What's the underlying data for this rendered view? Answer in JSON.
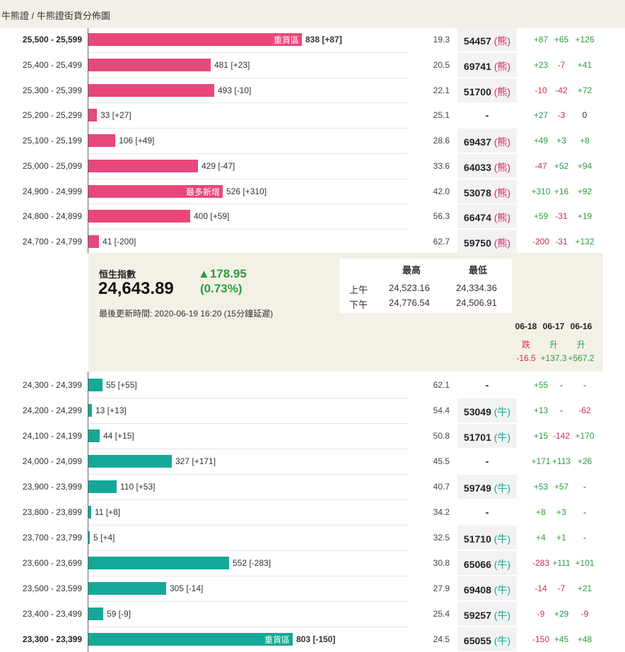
{
  "breadcrumb": "牛熊證 / 牛熊證街貨分佈圖",
  "bear_rows": [
    {
      "range": "25,500 - 25,599",
      "qty": "838",
      "change": "[+87]",
      "tag": "重貨區",
      "bold": true,
      "distance": "19.3",
      "code": "54457",
      "type": "(熊)",
      "d1": "+87",
      "d2": "+65",
      "d3": "+126"
    },
    {
      "range": "25,400 - 25,499",
      "qty": "481",
      "change": "[+23]",
      "tag": "",
      "bold": false,
      "distance": "20.5",
      "code": "69741",
      "type": "(熊)",
      "d1": "+23",
      "d2": "-7",
      "d3": "+41"
    },
    {
      "range": "25,300 - 25,399",
      "qty": "493",
      "change": "[-10]",
      "tag": "",
      "bold": false,
      "distance": "22.1",
      "code": "51700",
      "type": "(熊)",
      "d1": "-10",
      "d2": "-42",
      "d3": "+72"
    },
    {
      "range": "25,200 - 25,299",
      "qty": "33",
      "change": "[+27]",
      "tag": "",
      "bold": false,
      "distance": "25.1",
      "code": "-",
      "type": "",
      "d1": "+27",
      "d2": "-3",
      "d3": "0"
    },
    {
      "range": "25,100 - 25,199",
      "qty": "106",
      "change": "[+49]",
      "tag": "",
      "bold": false,
      "distance": "28.6",
      "code": "69437",
      "type": "(熊)",
      "d1": "+49",
      "d2": "+3",
      "d3": "+8"
    },
    {
      "range": "25,000 - 25,099",
      "qty": "429",
      "change": "[-47]",
      "tag": "",
      "bold": false,
      "distance": "33.6",
      "code": "64033",
      "type": "(熊)",
      "d1": "-47",
      "d2": "+52",
      "d3": "+94"
    },
    {
      "range": "24,900 - 24,999",
      "qty": "526",
      "change": "[+310]",
      "tag": "最多新增",
      "bold": false,
      "distance": "42.0",
      "code": "53078",
      "type": "(熊)",
      "d1": "+310",
      "d2": "+16",
      "d3": "+92"
    },
    {
      "range": "24,800 - 24,899",
      "qty": "400",
      "change": "[+59]",
      "tag": "",
      "bold": false,
      "distance": "56.3",
      "code": "66474",
      "type": "(熊)",
      "d1": "+59",
      "d2": "-31",
      "d3": "+19"
    },
    {
      "range": "24,700 - 24,799",
      "qty": "41",
      "change": "[-200]",
      "tag": "",
      "bold": false,
      "distance": "62.7",
      "code": "59750",
      "type": "(熊)",
      "d1": "-200",
      "d2": "-31",
      "d3": "+132"
    }
  ],
  "index": {
    "title": "恒生指數",
    "value": "24,643.89",
    "change": "▲178.95",
    "change_pct": "(0.73%)",
    "updated": "最後更新時間: 2020-06-19 16:20 (15分鐘延遲)",
    "high_header": "最高",
    "low_header": "最低",
    "am_label": "上午",
    "pm_label": "下午",
    "am_high": "24,523.16",
    "am_low": "24,334.36",
    "pm_high": "24,776.54",
    "pm_low": "24,506.91",
    "days": [
      {
        "date": "06-18",
        "dir": "跌",
        "pts": "-16.5",
        "color": "#d62a4a"
      },
      {
        "date": "06-17",
        "dir": "升",
        "pts": "+137.3",
        "color": "#2f9a43"
      },
      {
        "date": "06-16",
        "dir": "升",
        "pts": "+567.2",
        "color": "#2f9a43"
      }
    ]
  },
  "bull_rows": [
    {
      "range": "24,300 - 24,399",
      "qty": "55",
      "change": "[+55]",
      "tag": "",
      "bold": false,
      "distance": "62.1",
      "code": "-",
      "type": "",
      "d1": "+55",
      "d2": "-",
      "d3": "-"
    },
    {
      "range": "24,200 - 24,299",
      "qty": "13",
      "change": "[+13]",
      "tag": "",
      "bold": false,
      "distance": "54.4",
      "code": "53049",
      "type": "(牛)",
      "d1": "+13",
      "d2": "-",
      "d3": "-62"
    },
    {
      "range": "24,100 - 24,199",
      "qty": "44",
      "change": "[+15]",
      "tag": "",
      "bold": false,
      "distance": "50.8",
      "code": "51701",
      "type": "(牛)",
      "d1": "+15",
      "d2": "-142",
      "d3": "+170"
    },
    {
      "range": "24,000 - 24,099",
      "qty": "327",
      "change": "[+171]",
      "tag": "",
      "bold": false,
      "distance": "45.5",
      "code": "-",
      "type": "",
      "d1": "+171",
      "d2": "+113",
      "d3": "+26"
    },
    {
      "range": "23,900 - 23,999",
      "qty": "110",
      "change": "[+53]",
      "tag": "",
      "bold": false,
      "distance": "40.7",
      "code": "59749",
      "type": "(牛)",
      "d1": "+53",
      "d2": "+57",
      "d3": "-"
    },
    {
      "range": "23,800 - 23,899",
      "qty": "11",
      "change": "[+8]",
      "tag": "",
      "bold": false,
      "distance": "34.2",
      "code": "-",
      "type": "",
      "d1": "+8",
      "d2": "+3",
      "d3": "-"
    },
    {
      "range": "23,700 - 23,799",
      "qty": "5",
      "change": "[+4]",
      "tag": "",
      "bold": false,
      "distance": "32.5",
      "code": "51710",
      "type": "(牛)",
      "d1": "+4",
      "d2": "+1",
      "d3": "-"
    },
    {
      "range": "23,600 - 23,699",
      "qty": "552",
      "change": "[-283]",
      "tag": "",
      "bold": false,
      "distance": "30.8",
      "code": "65066",
      "type": "(牛)",
      "d1": "-283",
      "d2": "+111",
      "d3": "+101"
    },
    {
      "range": "23,500 - 23,599",
      "qty": "305",
      "change": "[-14]",
      "tag": "",
      "bold": false,
      "distance": "27.9",
      "code": "69408",
      "type": "(牛)",
      "d1": "-14",
      "d2": "-7",
      "d3": "+21"
    },
    {
      "range": "23,400 - 23,499",
      "qty": "59",
      "change": "[-9]",
      "tag": "",
      "bold": false,
      "distance": "25.4",
      "code": "59257",
      "type": "(牛)",
      "d1": "-9",
      "d2": "+29",
      "d3": "-9"
    },
    {
      "range": "23,300 - 23,399",
      "qty": "803",
      "change": "[-150]",
      "tag": "重貨區",
      "bold": true,
      "distance": "24.5",
      "code": "65055",
      "type": "(牛)",
      "d1": "-150",
      "d2": "+45",
      "d3": "+48"
    }
  ],
  "colors": {
    "bear": "#e8477a",
    "bull": "#15a898",
    "up": "#2f9a43",
    "down": "#d62a4a",
    "panel": "#f3f1e6"
  }
}
